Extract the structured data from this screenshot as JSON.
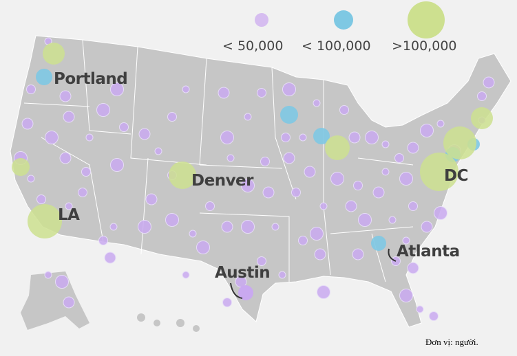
{
  "legend": {
    "items": [
      {
        "label": "< 50,000",
        "color": "#d6bdf0"
      },
      {
        "label": "< 100,000",
        "color": "#7ec8e3"
      },
      {
        "label": ">100,000",
        "color": "#cde08f"
      }
    ]
  },
  "cities": [
    {
      "name": "Portland",
      "category": "< 100,000"
    },
    {
      "name": "Denver",
      "category": ">100,000"
    },
    {
      "name": "LA",
      "category": ">100,000"
    },
    {
      "name": "DC",
      "category": ">100,000"
    },
    {
      "name": "Austin",
      "category": "< 50,000"
    },
    {
      "name": "Atlanta",
      "category": "< 100,000"
    }
  ],
  "map_color": "#c6c6c6",
  "note": "Đơn vị: người."
}
